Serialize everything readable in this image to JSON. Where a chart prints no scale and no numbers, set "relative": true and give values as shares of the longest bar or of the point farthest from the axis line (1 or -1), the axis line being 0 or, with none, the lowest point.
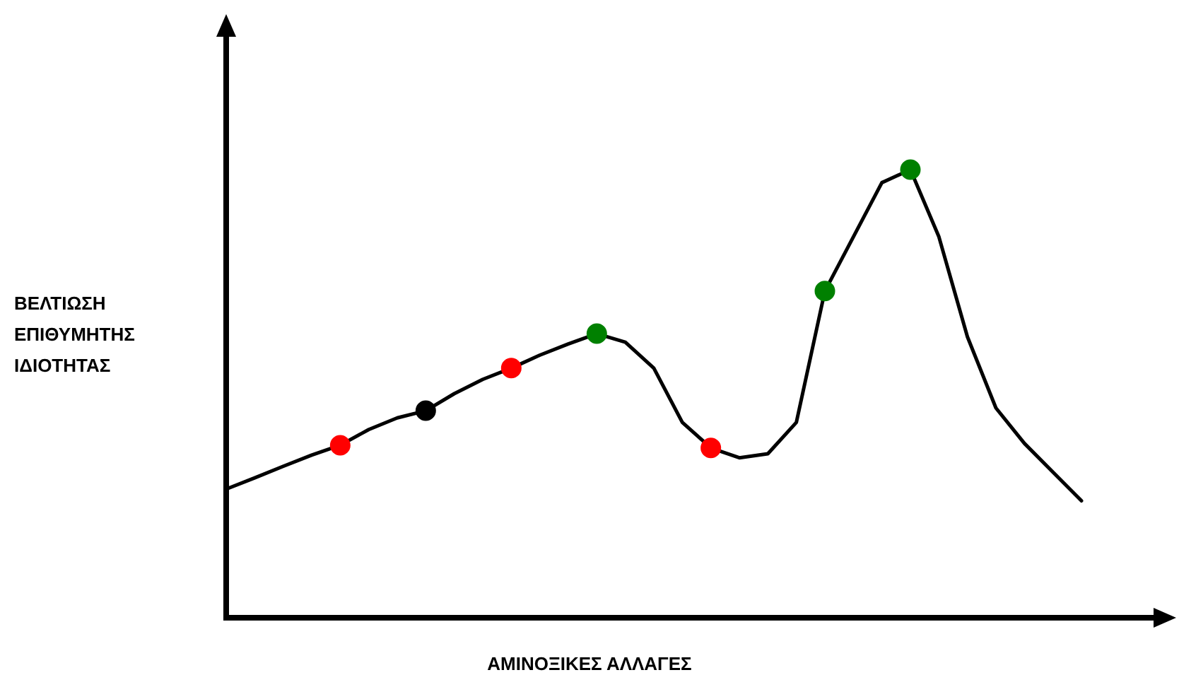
{
  "chart_data": {
    "type": "line",
    "relative": true,
    "xlabel": "ΑΜΙΝΟΞΙΚΕΣ ΑΛΛΑΓΕΣ",
    "ylabel": "ΒΕΛΤΙΩΣΗ\nΕΠΙΘΥΜΗΤΗΣ\nΙΔΙΟΤΗΤΑΣ",
    "categories": [
      null,
      null,
      null,
      null,
      null,
      null,
      null,
      null,
      null,
      null,
      null,
      null,
      null,
      null,
      null,
      null,
      null,
      null,
      null,
      null,
      null,
      null,
      null,
      null,
      null,
      null,
      null,
      null,
      null,
      null,
      null
    ],
    "series": [
      {
        "color": "#000000",
        "colors": [
          null,
          null,
          null,
          null,
          "#ff0000",
          null,
          null,
          "#000000",
          null,
          null,
          "#ff0000",
          null,
          null,
          "#008000",
          null,
          null,
          null,
          "#ff0000",
          null,
          null,
          null,
          "#008000",
          null,
          null,
          "#008000",
          null,
          null,
          null,
          null,
          null,
          null
        ],
        "values": [
          0.287,
          0.312,
          0.338,
          0.363,
          0.385,
          0.42,
          0.446,
          0.462,
          0.5,
          0.532,
          0.557,
          0.586,
          0.611,
          0.634,
          0.615,
          0.557,
          0.436,
          0.379,
          0.357,
          0.366,
          0.436,
          0.729,
          0.85,
          0.971,
          1,
          0.85,
          0.627,
          0.468,
          0.389,
          0.325,
          0.261
        ]
      }
    ]
  }
}
